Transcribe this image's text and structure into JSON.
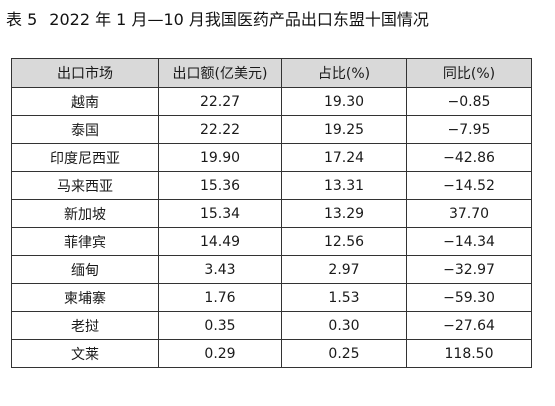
{
  "caption": {
    "number": "表 5",
    "title": "2022 年 1 月—10 月我国医药产品出口东盟十国情况"
  },
  "table": {
    "headers": [
      "出口市场",
      "出口额(亿美元)",
      "占比(%)",
      "同比(%)"
    ],
    "rows": [
      [
        "越南",
        "22.27",
        "19.30",
        "−0.85"
      ],
      [
        "泰国",
        "22.22",
        "19.25",
        "−7.95"
      ],
      [
        "印度尼西亚",
        "19.90",
        "17.24",
        "−42.86"
      ],
      [
        "马来西亚",
        "15.36",
        "13.31",
        "−14.52"
      ],
      [
        "新加坡",
        "15.34",
        "13.29",
        "37.70"
      ],
      [
        "菲律宾",
        "14.49",
        "12.56",
        "−14.34"
      ],
      [
        "缅甸",
        "3.43",
        "2.97",
        "−32.97"
      ],
      [
        "柬埔寨",
        "1.76",
        "1.53",
        "−59.30"
      ],
      [
        "老挝",
        "0.35",
        "0.30",
        "−27.64"
      ],
      [
        "文莱",
        "0.29",
        "0.25",
        "118.50"
      ]
    ]
  },
  "colors": {
    "header_bg": "#d9d9d9",
    "border": "#333333",
    "text": "#1a1a1a"
  }
}
